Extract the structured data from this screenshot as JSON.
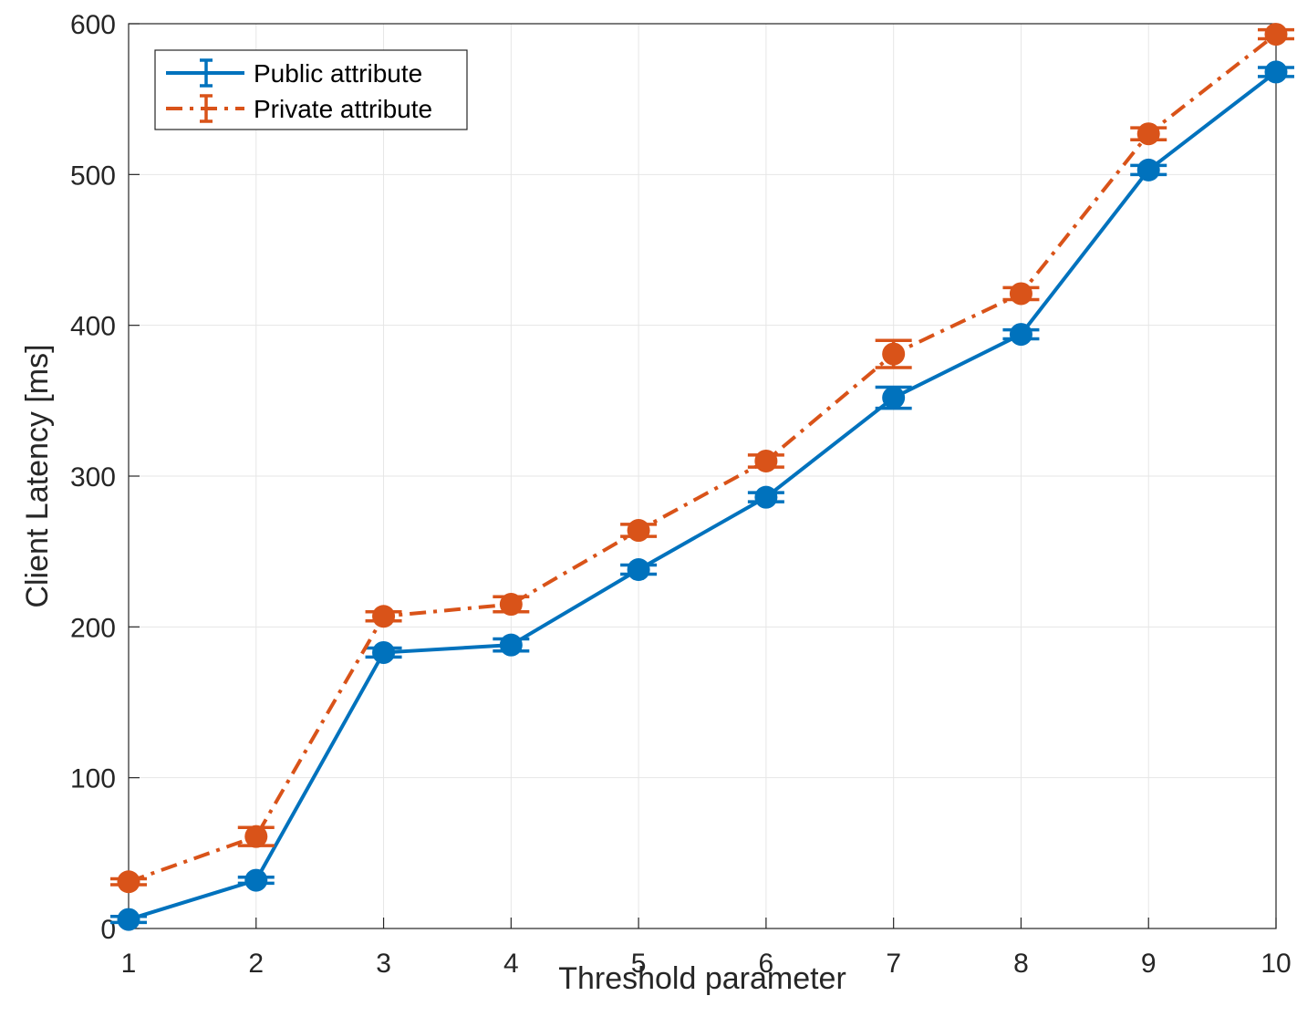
{
  "chart_data": {
    "type": "line",
    "xlabel": "Threshold parameter",
    "ylabel": "Client Latency [ms]",
    "xlim": [
      1,
      10
    ],
    "ylim": [
      0,
      600
    ],
    "x_ticks": [
      "1",
      "2",
      "3",
      "4",
      "5",
      "6",
      "7",
      "8",
      "9",
      "10"
    ],
    "y_ticks": [
      "0",
      "100",
      "200",
      "300",
      "400",
      "500",
      "600"
    ],
    "grid": true,
    "legend_position": "top-left",
    "x": [
      1,
      2,
      3,
      4,
      5,
      6,
      7,
      8,
      9,
      10
    ],
    "series": [
      {
        "name": "Public attribute",
        "color": "#0072BD",
        "line_style": "solid",
        "values": [
          6,
          32,
          183,
          188,
          238,
          286,
          352,
          394,
          503,
          568
        ],
        "error": [
          2,
          2,
          3,
          4,
          3,
          3,
          7,
          3,
          3,
          3
        ]
      },
      {
        "name": "Private attribute",
        "color": "#D95319",
        "line_style": "dash-dot",
        "values": [
          31,
          61,
          207,
          215,
          264,
          310,
          381,
          421,
          527,
          593
        ],
        "error": [
          2,
          6,
          3,
          5,
          4,
          4,
          9,
          4,
          4,
          3
        ]
      }
    ]
  }
}
